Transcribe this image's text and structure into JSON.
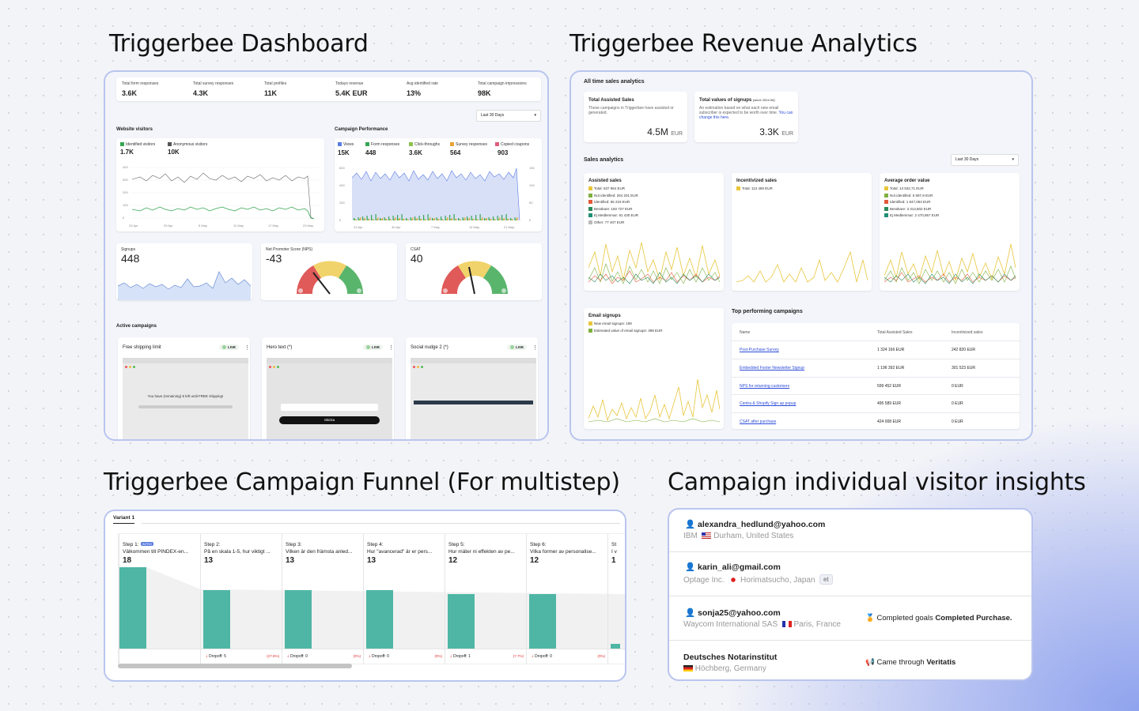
{
  "titles": {
    "dashboard": "Triggerbee Dashboard",
    "revenue": "Triggerbee Revenue Analytics",
    "funnel": "Triggerbee Campaign Funnel (For multistep)",
    "visitors": "Campaign individual visitor insights"
  },
  "dashboard": {
    "kpis": [
      {
        "label": "Total form responses",
        "value": "3.6K"
      },
      {
        "label": "Total survey responses",
        "value": "4.3K"
      },
      {
        "label": "Total profiles",
        "value": "11K"
      },
      {
        "label": "Todays revenue",
        "value": "5.4K EUR"
      },
      {
        "label": "Avg identified rate",
        "value": "13%"
      },
      {
        "label": "Total campaign impressions",
        "value": "98K"
      }
    ],
    "range": "Last 30 Days",
    "website_visitors": {
      "title": "Website visitors",
      "identified_label": "Identified visitors",
      "identified_value": "1.7K",
      "anonymous_label": "Anonymous visitors",
      "anonymous_value": "10K",
      "yticks": [
        "400",
        "300",
        "200",
        "100",
        "0"
      ],
      "xticks": [
        "23 Apr",
        "29 Apr",
        "5 May",
        "11 May",
        "17 May",
        "23 May"
      ]
    },
    "campaign_performance": {
      "title": "Campaign Performance",
      "legend": [
        {
          "label": "Views",
          "value": "15K",
          "color": "#5a7be0"
        },
        {
          "label": "Form responses",
          "value": "448",
          "color": "#36a653"
        },
        {
          "label": "Click-throughs",
          "value": "3.6K",
          "color": "#8bc34a"
        },
        {
          "label": "Survey responses",
          "value": "564",
          "color": "#e8a23a"
        },
        {
          "label": "Copied coupons",
          "value": "903",
          "color": "#e25b7c"
        }
      ],
      "yticks_left": [
        "600",
        "400",
        "200",
        "0"
      ],
      "yticks_right": [
        "150",
        "100",
        "50",
        "0"
      ],
      "xticks": [
        "23 Apr",
        "30 Apr",
        "7 May",
        "14 May",
        "21 May"
      ]
    },
    "signups": {
      "label": "Signups",
      "value": "448"
    },
    "nps": {
      "label": "Net Promoter Score (NPS)",
      "value": "-43"
    },
    "csat": {
      "label": "CSAT",
      "value": "40"
    },
    "active_campaigns": {
      "title": "Active campaigns",
      "items": [
        {
          "name": "Free shipping limit",
          "status": "LIVE",
          "preview_text": "You have (remaining) € left until FREE shipping!"
        },
        {
          "name": "Hero text (*)",
          "status": "LIVE",
          "preview_text": "Skicka"
        },
        {
          "name": "Social nudge 2 (*)",
          "status": "LIVE",
          "preview_text": ""
        }
      ]
    }
  },
  "revenue": {
    "all_time_title": "All time sales analytics",
    "assisted": {
      "title": "Total Assisted Sales",
      "desc": "These campaigns in Triggerbee have assisted or generated.",
      "value": "4.5M",
      "unit": "EUR"
    },
    "signups_value": {
      "title": "Total values of signups",
      "since": "(since 2024-06)",
      "desc": "An estimation based on what each new email subscriber is expected to be worth over time.",
      "link": "You can change this here.",
      "value": "3.3K",
      "unit": "EUR"
    },
    "sales_title": "Sales analytics",
    "range": "Last 30 Days",
    "assisted_sales": {
      "title": "Assisted sales",
      "lines": [
        {
          "text": "Total: 637 964 EUR",
          "color": "#e8c53a"
        },
        {
          "text": "Not identified: 254 201 EUR",
          "color": "#7fb03f"
        },
        {
          "text": "Identified: 65 219 EUR",
          "color": "#e2593b"
        },
        {
          "text": "Besökare: 150 727 EUR",
          "color": "#2a8a5a"
        },
        {
          "text": "Ej Medlemmar: 81 430 EUR",
          "color": "#1f8f74"
        },
        {
          "text": "Other: 77 407 EUR",
          "color": "#bbbbbb"
        }
      ]
    },
    "incentivized": {
      "title": "Incentivized sales",
      "lines": [
        {
          "text": "Total: 113 469 EUR",
          "color": "#e8c53a"
        }
      ]
    },
    "aov": {
      "title": "Average order value",
      "lines": [
        {
          "text": "Total: 13 532,71 EUR",
          "color": "#e8c53a"
        },
        {
          "text": "Not identified: 5 597,9 EUR",
          "color": "#7fb03f"
        },
        {
          "text": "Identified: 1 847,053 EUR",
          "color": "#e2593b"
        },
        {
          "text": "Besökare: 3 313,802 EUR",
          "color": "#2a8a5a"
        },
        {
          "text": "Ej Medlemmar: 2 470,957 EUR",
          "color": "#1f8f74"
        }
      ]
    },
    "email_signups": {
      "title": "Email signups",
      "lines": [
        {
          "text": "New email signups: 199",
          "color": "#e8c53a"
        },
        {
          "text": "Estimated value of email signups: 398 EUR",
          "color": "#7fb03f"
        }
      ]
    },
    "top": {
      "title": "Top performing campaigns",
      "headers": [
        "Name",
        "Total Assisted Sales",
        "Incentivized sales"
      ],
      "rows": [
        {
          "name": "Post-Purchase Survey",
          "assisted": "1 324 166 EUR",
          "incentivized": "242 820 EUR"
        },
        {
          "name": "Embedded Footer Newsletter Signup",
          "assisted": "1 196 392 EUR",
          "incentivized": "301 523 EUR"
        },
        {
          "name": "NPS for returning customers",
          "assisted": "599 452 EUR",
          "incentivized": "0 EUR"
        },
        {
          "name": "Centra & Shopify Sign up popup",
          "assisted": "495 589 EUR",
          "incentivized": "0 EUR"
        },
        {
          "name": "CSAT after purchase",
          "assisted": "424 008 EUR",
          "incentivized": "0 EUR"
        }
      ]
    }
  },
  "funnel": {
    "tab": "Variant 1",
    "steps": [
      {
        "title": "Step 1:",
        "badge": "INTRO",
        "question": "Välkommen till PINDEX-en...",
        "value": 18,
        "dropoff": "",
        "pct": ""
      },
      {
        "title": "Step 2:",
        "question": "På en skala 1-5, hur viktigt ...",
        "value": 13,
        "dropoff": "Dropoff: 5",
        "pct": "(27.8%)"
      },
      {
        "title": "Step 3:",
        "question": "Vilken är den främsta anled...",
        "value": 13,
        "dropoff": "Dropoff: 0",
        "pct": "(0%)"
      },
      {
        "title": "Step 4:",
        "question": "Hur \"avancerad\" är er pers...",
        "value": 13,
        "dropoff": "Dropoff: 0",
        "pct": "(0%)"
      },
      {
        "title": "Step 5:",
        "question": "Hur mäter ni effekten av pe...",
        "value": 12,
        "dropoff": "Dropoff: 1",
        "pct": "(7.7%)"
      },
      {
        "title": "Step 6:",
        "question": "Vilka former av personalise...",
        "value": 12,
        "dropoff": "Dropoff: 0",
        "pct": "(0%)"
      },
      {
        "title": "St",
        "question": "I v",
        "value": 1,
        "dropoff": "",
        "pct": ""
      }
    ]
  },
  "visitors": [
    {
      "email": "alexandra_hedlund@yahoo.com",
      "company": "IBM",
      "location": "Durham, United States",
      "flag": "us",
      "extra": ""
    },
    {
      "email": "karin_ali@gmail.com",
      "company": "Optage Inc.",
      "location": "Horimatsucho, Japan",
      "flag": "jp",
      "extra": "et"
    },
    {
      "email": "sonja25@yahoo.com",
      "company": "Waycom International SAS",
      "location": "Paris, France",
      "flag": "fr",
      "goal_prefix": "Completed goals",
      "goal": "Completed Purchase."
    },
    {
      "email": "Deutsches Notarinstitut",
      "company": "",
      "location": "Höchberg, Germany",
      "flag": "de",
      "came_prefix": "Came through",
      "came": "Veritatis"
    }
  ]
}
